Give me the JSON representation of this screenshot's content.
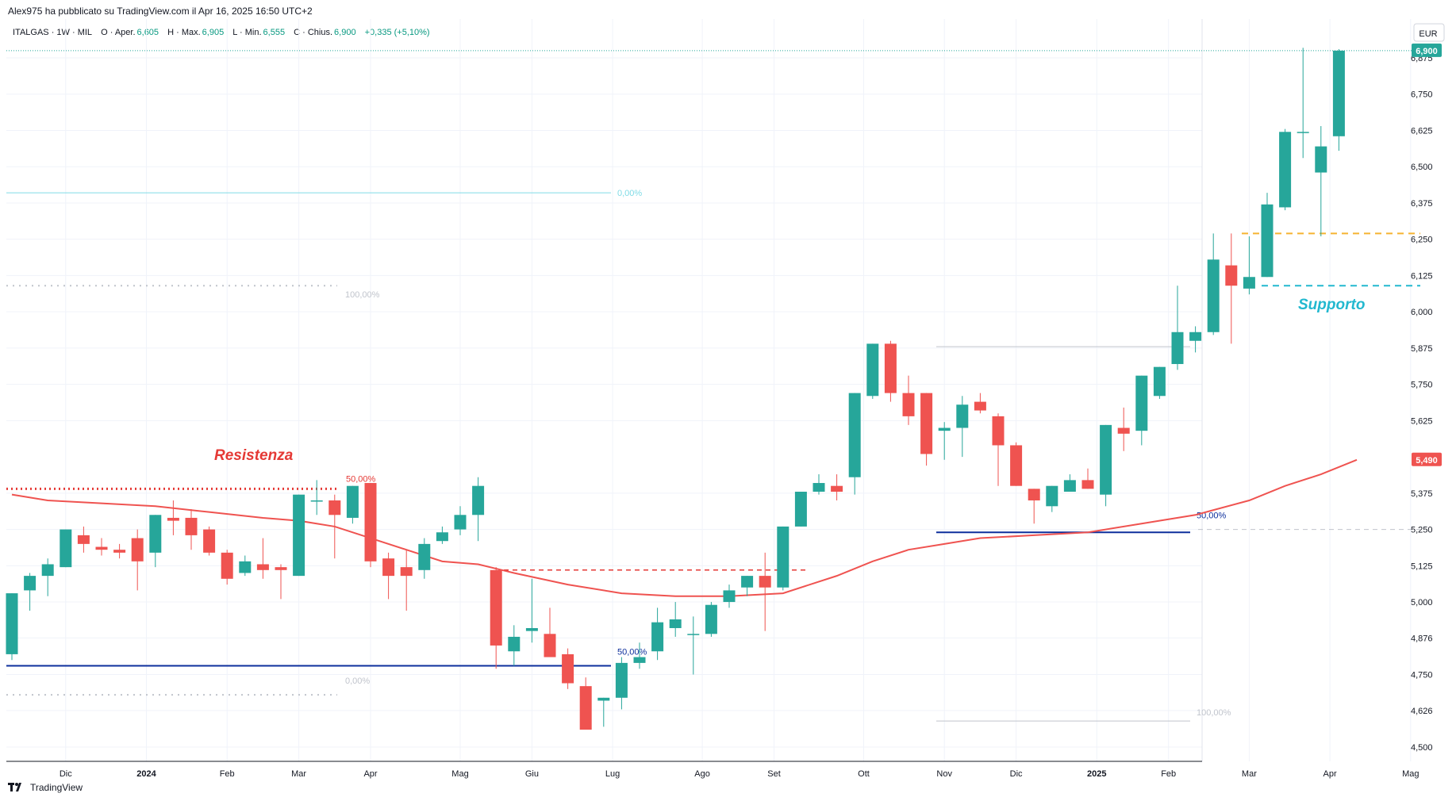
{
  "header": {
    "published": "Alex975 ha pubblicato su TradingView.com il Apr 16, 2025 16:50 UTC+2"
  },
  "legend": {
    "symbol": "ITALGAS · 1W · MIL",
    "open_key": "O · Aper.",
    "open": "6,605",
    "high_key": "H · Max.",
    "high": "6,905",
    "low_key": "L · Min.",
    "low": "6,555",
    "close_key": "C · Chius.",
    "close": "6,900",
    "change": "+0,335 (+5,10%)"
  },
  "footer": {
    "brand": "TradingView"
  },
  "colors": {
    "up": "#26a69a",
    "down": "#ef5350",
    "ma": "#ef5350",
    "grid": "#f0f3fa",
    "fib_blue": "#0d2f9c",
    "support": "#22b8cf",
    "orange": "#f5b331"
  },
  "chart_data": {
    "type": "candlestick",
    "currency": "EUR",
    "ylim": [
      4.5,
      6.93
    ],
    "y_ticks": [
      "6,875",
      "6,750",
      "6,625",
      "6,500",
      "6,375",
      "6,250",
      "6,125",
      "6,000",
      "5,875",
      "5,750",
      "5,625",
      "5,375",
      "5,250",
      "5,125",
      "5,000",
      "4,876",
      "4,750",
      "4,626",
      "4,500"
    ],
    "y_tick_values": [
      6.875,
      6.75,
      6.625,
      6.5,
      6.375,
      6.25,
      6.125,
      6.0,
      5.875,
      5.75,
      5.625,
      5.375,
      5.25,
      5.125,
      5.0,
      4.876,
      4.75,
      4.626,
      4.5
    ],
    "x_labels": [
      "Dic",
      "2024",
      "Feb",
      "Mar",
      "Apr",
      "Mag",
      "Giu",
      "Lug",
      "Ago",
      "Set",
      "Ott",
      "Nov",
      "Dic",
      "2025",
      "Feb",
      "Mar",
      "Apr",
      "Mag"
    ],
    "x_label_bar_index": [
      3,
      7.5,
      12,
      16,
      20,
      25,
      29,
      33.5,
      38.5,
      42.5,
      47.5,
      52,
      56,
      60.5,
      64.5,
      69,
      73.5,
      78
    ],
    "last_price": "6,900",
    "ma_price": "5,490",
    "ohlc": [
      [
        4.82,
        5.03,
        4.8,
        5.03
      ],
      [
        5.04,
        5.1,
        4.97,
        5.09
      ],
      [
        5.09,
        5.15,
        5.02,
        5.13
      ],
      [
        5.12,
        5.25,
        5.12,
        5.25
      ],
      [
        5.23,
        5.26,
        5.17,
        5.2
      ],
      [
        5.19,
        5.22,
        5.16,
        5.18
      ],
      [
        5.18,
        5.2,
        5.15,
        5.17
      ],
      [
        5.22,
        5.25,
        5.04,
        5.14
      ],
      [
        5.17,
        5.3,
        5.12,
        5.3
      ],
      [
        5.29,
        5.35,
        5.23,
        5.28
      ],
      [
        5.29,
        5.32,
        5.18,
        5.23
      ],
      [
        5.25,
        5.26,
        5.16,
        5.17
      ],
      [
        5.17,
        5.18,
        5.06,
        5.08
      ],
      [
        5.1,
        5.16,
        5.09,
        5.14
      ],
      [
        5.13,
        5.22,
        5.08,
        5.11
      ],
      [
        5.12,
        5.13,
        5.01,
        5.11
      ],
      [
        5.09,
        5.37,
        5.09,
        5.37
      ],
      [
        5.35,
        5.42,
        5.3,
        5.35
      ],
      [
        5.35,
        5.37,
        5.15,
        5.3
      ],
      [
        5.29,
        5.4,
        5.27,
        5.4
      ],
      [
        5.41,
        5.41,
        5.12,
        5.14
      ],
      [
        5.15,
        5.17,
        5.01,
        5.09
      ],
      [
        5.12,
        5.18,
        4.97,
        5.09
      ],
      [
        5.11,
        5.22,
        5.08,
        5.2
      ],
      [
        5.21,
        5.26,
        5.2,
        5.24
      ],
      [
        5.25,
        5.33,
        5.23,
        5.3
      ],
      [
        5.3,
        5.43,
        5.21,
        5.4
      ],
      [
        5.11,
        5.12,
        4.77,
        4.85
      ],
      [
        4.83,
        4.92,
        4.78,
        4.88
      ],
      [
        4.9,
        5.08,
        4.86,
        4.91
      ],
      [
        4.89,
        4.98,
        4.82,
        4.81
      ],
      [
        4.82,
        4.84,
        4.7,
        4.72
      ],
      [
        4.71,
        4.74,
        4.58,
        4.56
      ],
      [
        4.66,
        4.67,
        4.57,
        4.67
      ],
      [
        4.67,
        4.81,
        4.63,
        4.79
      ],
      [
        4.79,
        4.86,
        4.77,
        4.81
      ],
      [
        4.83,
        4.98,
        4.8,
        4.93
      ],
      [
        4.91,
        5.0,
        4.88,
        4.94
      ],
      [
        4.89,
        4.95,
        4.75,
        4.89
      ],
      [
        4.89,
        5.0,
        4.88,
        4.99
      ],
      [
        5.0,
        5.06,
        4.98,
        5.04
      ],
      [
        5.05,
        5.09,
        5.02,
        5.09
      ],
      [
        5.09,
        5.17,
        4.9,
        5.05
      ],
      [
        5.05,
        5.26,
        5.04,
        5.26
      ],
      [
        5.26,
        5.38,
        5.26,
        5.38
      ],
      [
        5.38,
        5.44,
        5.37,
        5.41
      ],
      [
        5.4,
        5.44,
        5.35,
        5.38
      ],
      [
        5.43,
        5.72,
        5.37,
        5.72
      ],
      [
        5.71,
        5.89,
        5.7,
        5.89
      ],
      [
        5.89,
        5.9,
        5.69,
        5.72
      ],
      [
        5.72,
        5.78,
        5.61,
        5.64
      ],
      [
        5.72,
        5.72,
        5.47,
        5.51
      ],
      [
        5.59,
        5.62,
        5.49,
        5.6
      ],
      [
        5.6,
        5.71,
        5.5,
        5.68
      ],
      [
        5.69,
        5.72,
        5.65,
        5.66
      ],
      [
        5.64,
        5.65,
        5.4,
        5.54
      ],
      [
        5.54,
        5.55,
        5.4,
        5.4
      ],
      [
        5.39,
        5.39,
        5.27,
        5.35
      ],
      [
        5.33,
        5.4,
        5.31,
        5.4
      ],
      [
        5.38,
        5.44,
        5.38,
        5.42
      ],
      [
        5.42,
        5.46,
        5.39,
        5.39
      ],
      [
        5.37,
        5.61,
        5.33,
        5.61
      ],
      [
        5.6,
        5.67,
        5.52,
        5.58
      ],
      [
        5.59,
        5.78,
        5.54,
        5.78
      ],
      [
        5.71,
        5.81,
        5.7,
        5.81
      ],
      [
        5.82,
        6.09,
        5.8,
        5.93
      ],
      [
        5.9,
        5.95,
        5.86,
        5.93
      ],
      [
        5.93,
        6.27,
        5.92,
        6.18
      ],
      [
        6.16,
        6.27,
        5.89,
        6.09
      ],
      [
        6.08,
        6.26,
        6.06,
        6.12
      ],
      [
        6.12,
        6.41,
        6.12,
        6.37
      ],
      [
        6.36,
        6.63,
        6.35,
        6.62
      ],
      [
        6.62,
        6.91,
        6.53,
        6.62
      ],
      [
        6.48,
        6.64,
        6.26,
        6.57
      ],
      [
        6.605,
        6.905,
        6.555,
        6.9
      ]
    ],
    "moving_average": [
      [
        0,
        5.37
      ],
      [
        2,
        5.35
      ],
      [
        5,
        5.34
      ],
      [
        8,
        5.33
      ],
      [
        11,
        5.31
      ],
      [
        14,
        5.29
      ],
      [
        16,
        5.28
      ],
      [
        18,
        5.26
      ],
      [
        20,
        5.22
      ],
      [
        22,
        5.18
      ],
      [
        24,
        5.14
      ],
      [
        26,
        5.13
      ],
      [
        28,
        5.1
      ],
      [
        31,
        5.06
      ],
      [
        34,
        5.03
      ],
      [
        37,
        5.02
      ],
      [
        40,
        5.02
      ],
      [
        43,
        5.03
      ],
      [
        46,
        5.09
      ],
      [
        48,
        5.14
      ],
      [
        50,
        5.18
      ],
      [
        52,
        5.2
      ],
      [
        54,
        5.22
      ],
      [
        57,
        5.23
      ],
      [
        60,
        5.24
      ],
      [
        63,
        5.27
      ],
      [
        66,
        5.3
      ],
      [
        69,
        5.35
      ],
      [
        71,
        5.4
      ],
      [
        73,
        5.44
      ],
      [
        75,
        5.49
      ]
    ],
    "annotations": {
      "resistance_label": "Resistenza",
      "support_label": "Supporto",
      "fib_a": {
        "top": 6.41,
        "top_label": "0,00%",
        "gray_level": 6.09,
        "gray_label": "100,00%",
        "mid_level": 5.39,
        "mid_label": "50,00%",
        "blue_level": 4.78,
        "low_level": 4.68,
        "low_label": "0,00%"
      },
      "fib_b": {
        "mid_level": 5.11,
        "blue_level": 4.78,
        "blue_label": "50,00%"
      },
      "fib_c": {
        "top": 5.88,
        "blue_level": 5.24,
        "blue_label": "50,00%",
        "dash_level": 5.25,
        "bottom": 4.59,
        "bottom_label": "100,00%"
      },
      "orange_level": 6.27,
      "support_level": 6.09
    }
  }
}
